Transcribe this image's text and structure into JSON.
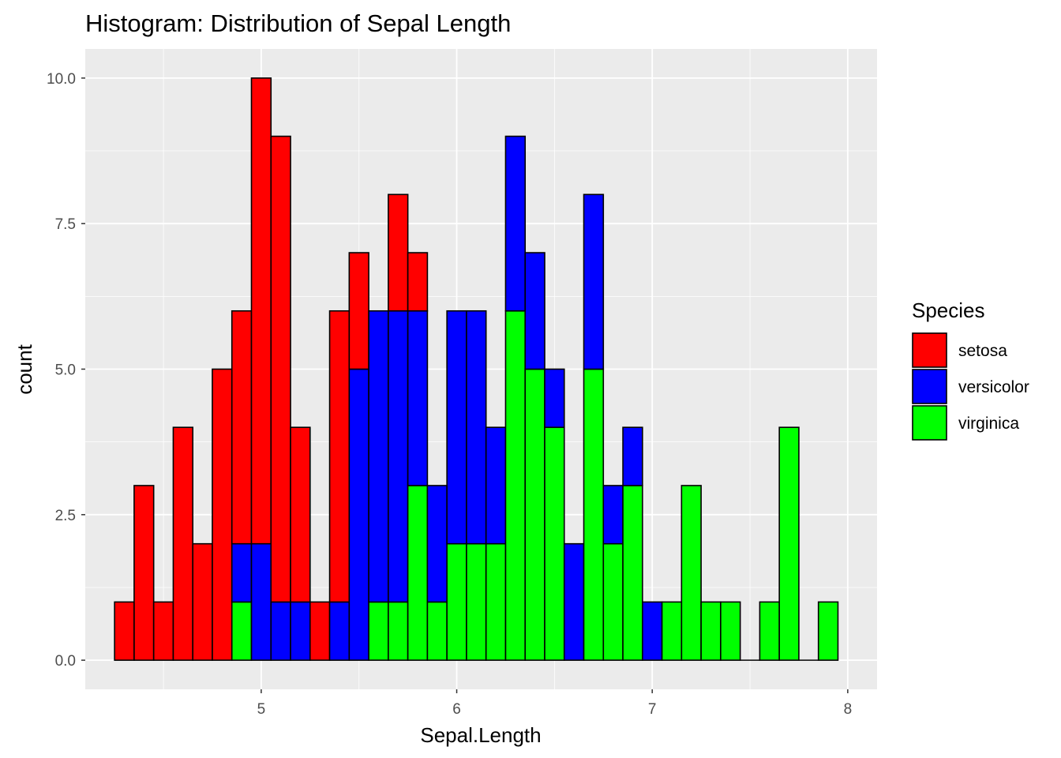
{
  "chart_data": {
    "type": "bar",
    "subtype": "stacked-histogram",
    "title": "Histogram: Distribution of Sepal Length",
    "xlabel": "Sepal.Length",
    "ylabel": "count",
    "xlim": [
      4.1,
      8.15
    ],
    "ylim": [
      -0.5,
      10.5
    ],
    "x_ticks": [
      5,
      6,
      7,
      8
    ],
    "x_tick_labels": [
      "5",
      "6",
      "7",
      "8"
    ],
    "y_ticks": [
      0,
      2.5,
      5,
      7.5,
      10
    ],
    "y_tick_labels": [
      "0.0",
      "2.5",
      "5.0",
      "7.5",
      "10.0"
    ],
    "grid": true,
    "legend": {
      "title": "Species",
      "position": "right"
    },
    "bin_centers": [
      4.3,
      4.4,
      4.5,
      4.6,
      4.7,
      4.8,
      4.9,
      5.0,
      5.1,
      5.2,
      5.3,
      5.4,
      5.5,
      5.6,
      5.7,
      5.8,
      5.9,
      6.0,
      6.1,
      6.2,
      6.3,
      6.4,
      6.5,
      6.6,
      6.7,
      6.8,
      6.9,
      7.0,
      7.1,
      7.2,
      7.3,
      7.4,
      7.5,
      7.6,
      7.7,
      7.8,
      7.9
    ],
    "bin_width": 0.1,
    "series": [
      {
        "name": "setosa",
        "color": "#FF0000",
        "values": [
          1,
          3,
          1,
          4,
          2,
          5,
          4,
          8,
          8,
          3,
          1,
          5,
          2,
          0,
          2,
          1,
          0,
          0,
          0,
          0,
          0,
          0,
          0,
          0,
          0,
          0,
          0,
          0,
          0,
          0,
          0,
          0,
          0,
          0,
          0,
          0,
          0
        ]
      },
      {
        "name": "versicolor",
        "color": "#0000FF",
        "values": [
          0,
          0,
          0,
          0,
          0,
          0,
          1,
          2,
          1,
          1,
          0,
          1,
          5,
          5,
          5,
          3,
          2,
          4,
          4,
          2,
          3,
          2,
          1,
          2,
          3,
          1,
          1,
          1,
          0,
          0,
          0,
          0,
          0,
          0,
          0,
          0,
          0
        ]
      },
      {
        "name": "virginica",
        "color": "#00FF00",
        "values": [
          0,
          0,
          0,
          0,
          0,
          0,
          1,
          0,
          0,
          0,
          0,
          0,
          0,
          1,
          1,
          3,
          1,
          2,
          2,
          2,
          6,
          5,
          4,
          0,
          5,
          2,
          3,
          0,
          1,
          3,
          1,
          1,
          0,
          1,
          4,
          0,
          1
        ]
      }
    ]
  },
  "colors": {
    "panel_background": "#EBEBEB",
    "major_grid": "#FFFFFF",
    "bar_outline": "#000000"
  }
}
